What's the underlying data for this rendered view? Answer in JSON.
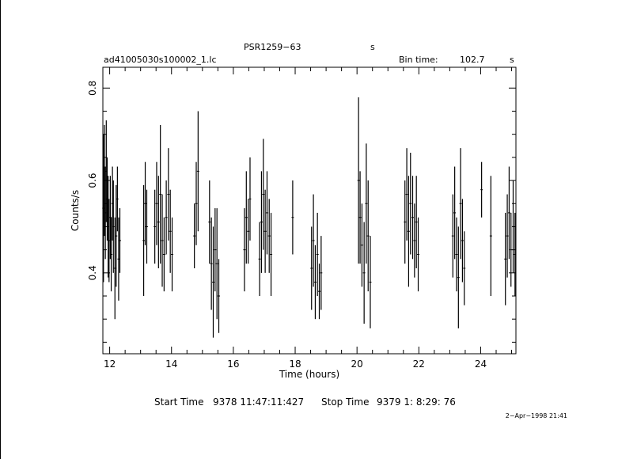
{
  "header": {
    "object_name": "PSR1259−63",
    "object_unit": "s",
    "file_name": "ad41005030s100002_1.lc",
    "bin_label": "Bin time:",
    "bin_value": "102.7",
    "bin_unit": "s"
  },
  "footer": {
    "start_label": "Start Time",
    "start_value": "9378 11:47:11:427",
    "stop_label": "Stop Time",
    "stop_value": "9379  1: 8:29: 76",
    "plot_date": "2−Apr−1998 21:41"
  },
  "chart_data": {
    "type": "scatter",
    "title": "PSR1259−63",
    "xlabel": "Time (hours)",
    "ylabel": "Counts/s",
    "xlim": [
      11.78,
      25.14
    ],
    "ylim": [
      0.225,
      0.845
    ],
    "x_ticks": [
      12,
      14,
      16,
      18,
      20,
      22,
      24
    ],
    "x_tick_labels": [
      "12",
      "14",
      "16",
      "18",
      "20",
      "22",
      "24"
    ],
    "y_ticks": [
      0.4,
      0.6,
      0.8
    ],
    "y_tick_labels": [
      "0.4",
      "0.6",
      "0.8"
    ],
    "grid": false,
    "legend": "none",
    "series": [
      {
        "points": [
          [
            11.8,
            0.54,
            0.16
          ],
          [
            11.83,
            0.6,
            0.12
          ],
          [
            11.86,
            0.53,
            0.1
          ],
          [
            11.89,
            0.62,
            0.11
          ],
          [
            11.92,
            0.56,
            0.09
          ],
          [
            11.95,
            0.5,
            0.11
          ],
          [
            11.98,
            0.47,
            0.09
          ],
          [
            12.02,
            0.52,
            0.09
          ],
          [
            12.05,
            0.44,
            0.08
          ],
          [
            12.09,
            0.55,
            0.08
          ],
          [
            12.12,
            0.5,
            0.1
          ],
          [
            12.17,
            0.41,
            0.11
          ],
          [
            12.21,
            0.48,
            0.11
          ],
          [
            12.25,
            0.56,
            0.07
          ],
          [
            12.29,
            0.43,
            0.09
          ],
          [
            12.33,
            0.47,
            0.07
          ],
          [
            13.1,
            0.47,
            0.12
          ],
          [
            13.15,
            0.55,
            0.09
          ],
          [
            13.2,
            0.5,
            0.08
          ],
          [
            13.46,
            0.5,
            0.08
          ],
          [
            13.52,
            0.55,
            0.09
          ],
          [
            13.58,
            0.51,
            0.1
          ],
          [
            13.64,
            0.57,
            0.15
          ],
          [
            13.7,
            0.47,
            0.1
          ],
          [
            13.76,
            0.44,
            0.08
          ],
          [
            13.83,
            0.52,
            0.08
          ],
          [
            13.9,
            0.57,
            0.1
          ],
          [
            13.96,
            0.49,
            0.09
          ],
          [
            14.02,
            0.44,
            0.08
          ],
          [
            14.74,
            0.48,
            0.07
          ],
          [
            14.8,
            0.55,
            0.09
          ],
          [
            14.86,
            0.62,
            0.13
          ],
          [
            15.23,
            0.51,
            0.09
          ],
          [
            15.29,
            0.42,
            0.1
          ],
          [
            15.35,
            0.38,
            0.12
          ],
          [
            15.41,
            0.45,
            0.09
          ],
          [
            15.47,
            0.42,
            0.12
          ],
          [
            15.53,
            0.35,
            0.08
          ],
          [
            16.36,
            0.45,
            0.09
          ],
          [
            16.42,
            0.52,
            0.1
          ],
          [
            16.48,
            0.49,
            0.07
          ],
          [
            16.54,
            0.56,
            0.09
          ],
          [
            16.85,
            0.43,
            0.08
          ],
          [
            16.91,
            0.51,
            0.11
          ],
          [
            16.97,
            0.57,
            0.12
          ],
          [
            17.03,
            0.49,
            0.09
          ],
          [
            17.09,
            0.53,
            0.09
          ],
          [
            17.16,
            0.48,
            0.08
          ],
          [
            17.22,
            0.44,
            0.09
          ],
          [
            17.92,
            0.52,
            0.08
          ],
          [
            18.53,
            0.41,
            0.09
          ],
          [
            18.59,
            0.47,
            0.1
          ],
          [
            18.65,
            0.38,
            0.08
          ],
          [
            18.72,
            0.44,
            0.09
          ],
          [
            18.78,
            0.36,
            0.06
          ],
          [
            18.84,
            0.4,
            0.08
          ],
          [
            20.05,
            0.6,
            0.18
          ],
          [
            20.1,
            0.52,
            0.1
          ],
          [
            20.16,
            0.46,
            0.09
          ],
          [
            20.23,
            0.4,
            0.11
          ],
          [
            20.3,
            0.55,
            0.13
          ],
          [
            20.36,
            0.48,
            0.12
          ],
          [
            20.43,
            0.38,
            0.1
          ],
          [
            21.55,
            0.51,
            0.09
          ],
          [
            21.61,
            0.57,
            0.1
          ],
          [
            21.67,
            0.49,
            0.12
          ],
          [
            21.73,
            0.55,
            0.11
          ],
          [
            21.8,
            0.52,
            0.09
          ],
          [
            21.86,
            0.47,
            0.08
          ],
          [
            21.92,
            0.51,
            0.1
          ],
          [
            21.98,
            0.44,
            0.08
          ],
          [
            23.1,
            0.48,
            0.09
          ],
          [
            23.16,
            0.53,
            0.1
          ],
          [
            23.22,
            0.44,
            0.08
          ],
          [
            23.28,
            0.39,
            0.11
          ],
          [
            23.35,
            0.55,
            0.12
          ],
          [
            23.41,
            0.47,
            0.09
          ],
          [
            23.47,
            0.41,
            0.08
          ],
          [
            24.03,
            0.58,
            0.06
          ],
          [
            24.33,
            0.48,
            0.13
          ],
          [
            24.8,
            0.43,
            0.1
          ],
          [
            24.86,
            0.48,
            0.09
          ],
          [
            24.92,
            0.53,
            0.1
          ],
          [
            24.98,
            0.45,
            0.08
          ],
          [
            25.05,
            0.5,
            0.1
          ],
          [
            25.11,
            0.44,
            0.09
          ]
        ]
      }
    ]
  }
}
